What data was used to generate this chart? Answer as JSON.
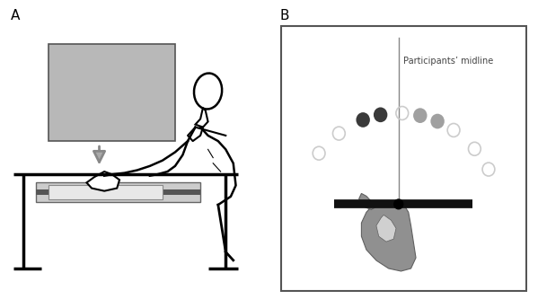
{
  "label_A": "A",
  "label_B": "B",
  "bg_color": "#ffffff",
  "midline_text": "Participants’ midline",
  "panel_label_fontsize": 11,
  "monitor_color": "#b8b8b8",
  "monitor_edge": "#555555",
  "arrow_color": "#aaaaaa",
  "arrow_edge": "#888888",
  "dark_dot1_color": "#3a3a3a",
  "dark_dot2_color": "#4a4a4a",
  "mid_dot1_color": "#a0a0a0",
  "mid_dot2_color": "#b0b0b0",
  "open_circle_color": "#cccccc",
  "midline_color": "#888888",
  "bar_color": "#111111",
  "hand_color": "#909090",
  "hand_edge": "#606060",
  "table_color": "#000000",
  "table_surface_color": "#cccccc",
  "person_color": "#000000"
}
